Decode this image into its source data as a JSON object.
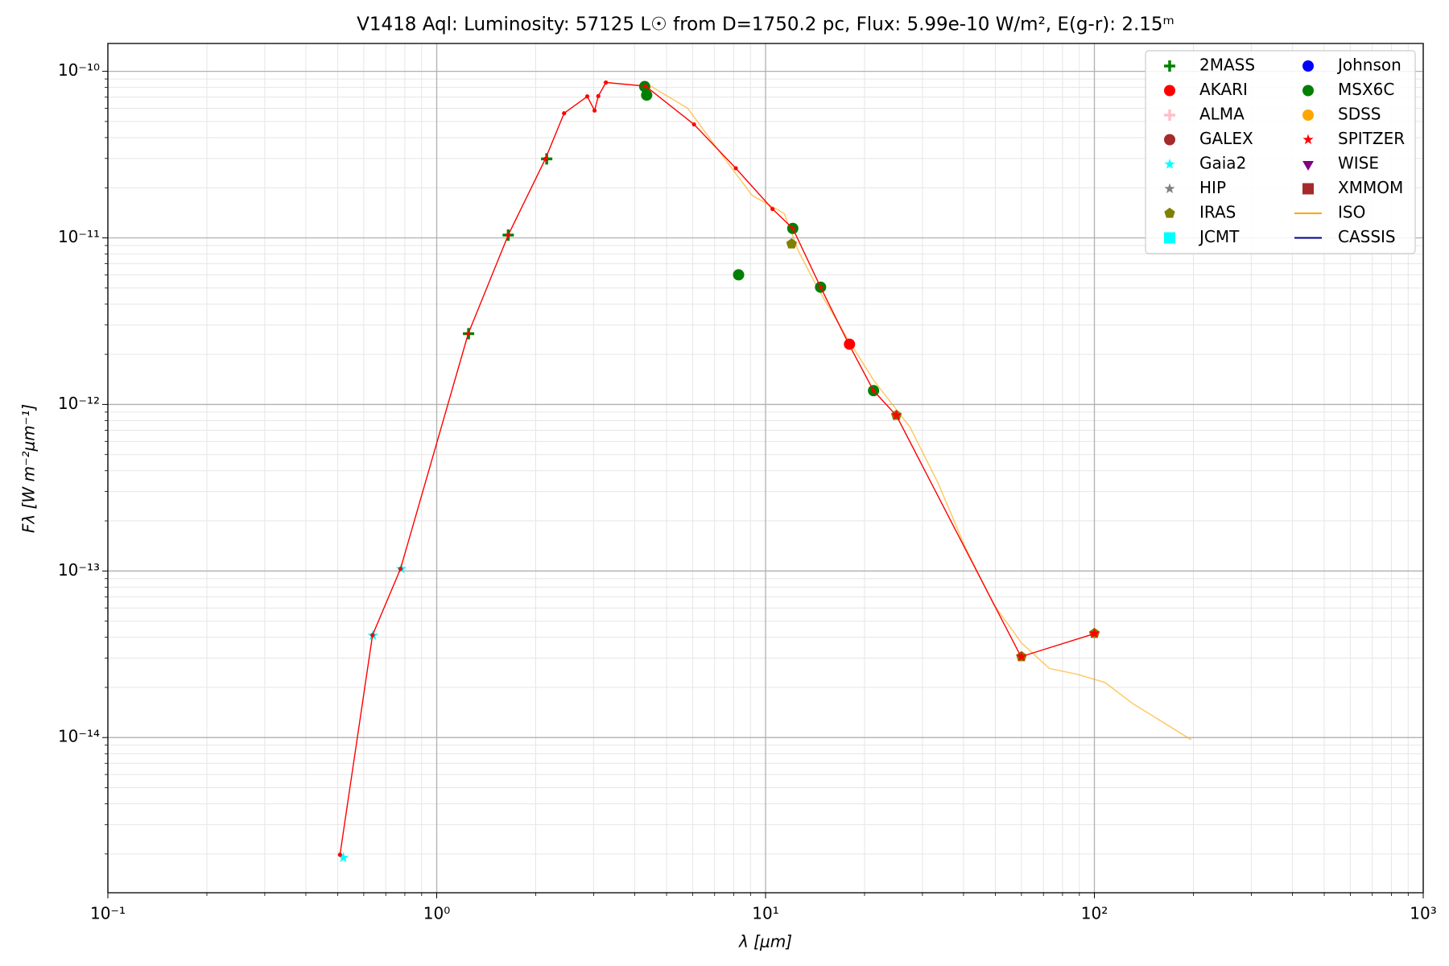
{
  "chart_data": {
    "type": "scatter",
    "title": "V1418 Aql:  Luminosity: 57125 L☉ from D=1750.2 pc, Flux: 5.99e-10 W/m², E(g-r): 2.15ᵐ",
    "x_label": "λ [μm]",
    "y_label": "Fλ [W m⁻²μm⁻¹]",
    "log_x": true,
    "log_y": true,
    "grid": true,
    "legend": "upper right",
    "xlim": [
      0.1,
      1000
    ],
    "xticks": [
      {
        "value": 0.1,
        "label": "10⁻¹"
      },
      {
        "value": 1,
        "label": "10⁰"
      },
      {
        "value": 10,
        "label": "10¹"
      },
      {
        "value": 100,
        "label": "10²"
      },
      {
        "value": 1000,
        "label": "10³"
      }
    ],
    "ylim": [
      1.17e-15,
      1.47e-10
    ],
    "yticks": [
      {
        "value": 1e-14,
        "label": "10⁻¹⁴"
      },
      {
        "value": 1e-13,
        "label": "10⁻¹³"
      },
      {
        "value": 1e-12,
        "label": "10⁻¹²"
      },
      {
        "value": 1e-11,
        "label": "10⁻¹¹"
      },
      {
        "value": 1e-10,
        "label": "10⁻¹⁰"
      }
    ],
    "model": {
      "color": "#ff0000",
      "x": [
        0.508,
        0.638,
        0.776,
        1.247,
        1.65,
        2.14,
        2.44,
        2.87,
        3.02,
        3.1,
        3.27,
        4.32,
        6.06,
        8.12,
        10.5,
        12.1,
        14.7,
        17.9,
        21.3,
        25.0,
        59.8,
        100.7
      ],
      "values": [
        1.98e-15,
        4.12e-14,
        1.03e-13,
        2.66e-12,
        1.04e-11,
        2.98e-11,
        5.6e-11,
        7.07e-11,
        5.82e-11,
        7.1e-11,
        8.57e-11,
        8.14e-11,
        4.8e-11,
        2.62e-11,
        1.49e-11,
        1.14e-11,
        5.06e-12,
        2.31e-12,
        1.21e-12,
        8.57e-13,
        3.06e-14,
        4.22e-14
      ]
    },
    "series": [
      {
        "name": "2MASS",
        "color": "#008000",
        "marker": "plus",
        "x": [
          1.25,
          1.65,
          2.16
        ],
        "values": [
          2.66e-12,
          1.04e-11,
          2.98e-11
        ]
      },
      {
        "name": "AKARI",
        "color": "#ff0000",
        "marker": "circle",
        "x": [
          18
        ],
        "values": [
          2.3e-12
        ]
      },
      {
        "name": "ALMA",
        "color": "#ffc0cb",
        "marker": "plus",
        "x": [],
        "values": []
      },
      {
        "name": "GALEX",
        "color": "#a52a2a",
        "marker": "circle",
        "x": [],
        "values": []
      },
      {
        "name": "Gaia2",
        "color": "#00ffff",
        "marker": "star",
        "x": [
          0.52,
          0.64,
          0.78
        ],
        "values": [
          1.9e-15,
          4.1e-14,
          1.03e-13
        ]
      },
      {
        "name": "HIP",
        "color": "#808080",
        "marker": "star",
        "x": [],
        "values": []
      },
      {
        "name": "IRAS",
        "color": "#808000",
        "marker": "pentagon",
        "x": [
          12,
          25,
          60,
          100
        ],
        "values": [
          9.2e-12,
          8.6e-13,
          3.06e-14,
          4.22e-14
        ]
      },
      {
        "name": "JCMT",
        "color": "#00ffff",
        "marker": "square",
        "x": [],
        "values": []
      },
      {
        "name": "Johnson",
        "color": "#0000ff",
        "marker": "circle",
        "x": [],
        "values": []
      },
      {
        "name": "MSX6C",
        "color": "#008000",
        "marker": "circle",
        "x": [
          4.29,
          4.35,
          8.28,
          12.1,
          14.7,
          21.3
        ],
        "values": [
          8.1e-11,
          7.2e-11,
          6e-12,
          1.14e-11,
          5.06e-12,
          1.21e-12
        ]
      },
      {
        "name": "SDSS",
        "color": "#ffa500",
        "marker": "circle",
        "x": [],
        "values": []
      },
      {
        "name": "SPITZER",
        "color": "#ff0000",
        "marker": "star",
        "x": [
          25,
          60,
          100
        ],
        "values": [
          8.6e-13,
          3.06e-14,
          4.22e-14
        ]
      },
      {
        "name": "WISE",
        "color": "#800080",
        "marker": "triangle-down",
        "x": [],
        "values": []
      },
      {
        "name": "XMMOM",
        "color": "#a52a2a",
        "marker": "square",
        "x": [],
        "values": []
      },
      {
        "name": "ISO",
        "color": "#ffa500",
        "marker": "line",
        "x": [
          3.2,
          4.5,
          5.8,
          7.5,
          9.1,
          11.4,
          12.6,
          14.4,
          17.5,
          21.3,
          27.5,
          33.4,
          40.6,
          49.4,
          60.0,
          72.9,
          88.6,
          107.7,
          130.8,
          159,
          197
        ],
        "values": [
          8.6e-11,
          8.1e-11,
          6e-11,
          3e-11,
          1.8e-11,
          1.4e-11,
          8.3e-12,
          5e-12,
          2.6e-12,
          1.4e-12,
          7.3e-13,
          3.4e-13,
          1.37e-13,
          6.3e-14,
          3.7e-14,
          2.6e-14,
          2.4e-14,
          2.14e-14,
          1.6e-14,
          1.26e-14,
          9.7e-15
        ]
      },
      {
        "name": "CASSIS",
        "color": "#00008b",
        "marker": "line",
        "x": [],
        "values": []
      }
    ]
  }
}
